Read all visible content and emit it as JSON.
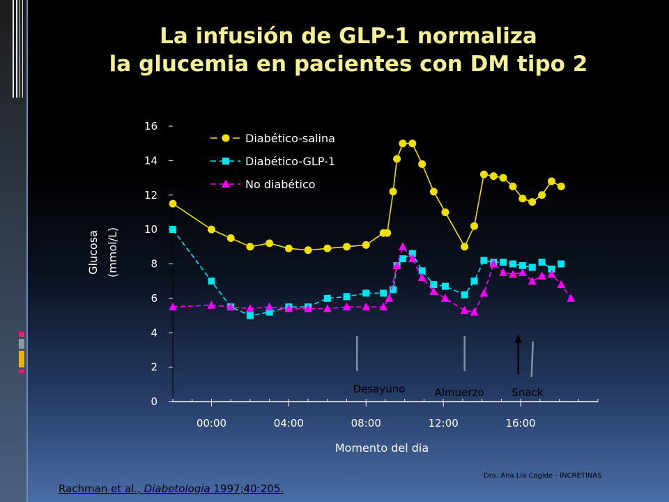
{
  "slide": {
    "title_line1": "La infusión de GLP-1 normaliza",
    "title_line2": "la glucemia en pacientes con DM tipo 2",
    "citation_authors": "Rachman et al., ",
    "citation_journal": "Diabetologia",
    "citation_ref": " 1997;40:205.",
    "footer": "Dra. Ana Lia Cagide - INCRETINAS",
    "accent_colors": [
      "#e0207a",
      "#8a9aa8",
      "#f0b000"
    ]
  },
  "chart_data": {
    "type": "line",
    "title": "",
    "xlabel": "Momento del dia",
    "ylabel_line1": "Glucosa",
    "ylabel_line2": "(mmol/L)",
    "ylim": [
      0,
      16
    ],
    "yticks": [
      "0",
      "2",
      "4",
      "6",
      "8",
      "10",
      "12",
      "14",
      "16"
    ],
    "xlim": [
      -2,
      20
    ],
    "xticks": [
      {
        "value": 0,
        "label": "00:00"
      },
      {
        "value": 4,
        "label": "04:00"
      },
      {
        "value": 8,
        "label": "08:00"
      },
      {
        "value": 12,
        "label": "12:00"
      },
      {
        "value": 16,
        "label": "16:00"
      }
    ],
    "grid": false,
    "legend_position": "top-left",
    "series": [
      {
        "name": "Diabético-salina",
        "color": "#f0e000",
        "marker": "circle",
        "line": "solid",
        "points": [
          [
            -2,
            11.5
          ],
          [
            0,
            10.0
          ],
          [
            1,
            9.5
          ],
          [
            2,
            9.0
          ],
          [
            3,
            9.2
          ],
          [
            4,
            8.9
          ],
          [
            5,
            8.8
          ],
          [
            6,
            8.9
          ],
          [
            7,
            9.0
          ],
          [
            8,
            9.1
          ],
          [
            8.9,
            9.8
          ],
          [
            9.1,
            9.8
          ],
          [
            9.4,
            12.2
          ],
          [
            9.6,
            14.1
          ],
          [
            9.9,
            15.0
          ],
          [
            10.4,
            15.0
          ],
          [
            10.9,
            13.8
          ],
          [
            11.5,
            12.2
          ],
          [
            12.1,
            11.0
          ],
          [
            13.1,
            9.0
          ],
          [
            13.6,
            10.2
          ],
          [
            14.1,
            13.2
          ],
          [
            14.6,
            13.1
          ],
          [
            15.1,
            13.0
          ],
          [
            15.6,
            12.5
          ],
          [
            16.1,
            11.8
          ],
          [
            16.6,
            11.6
          ],
          [
            17.1,
            12.0
          ],
          [
            17.6,
            12.8
          ],
          [
            18.1,
            12.5
          ]
        ]
      },
      {
        "name": "Diabético-GLP-1",
        "color": "#00e5f0",
        "marker": "square",
        "line": "dashed",
        "points": [
          [
            -2,
            10.0
          ],
          [
            0,
            7.0
          ],
          [
            1,
            5.5
          ],
          [
            2,
            5.0
          ],
          [
            3,
            5.2
          ],
          [
            4,
            5.5
          ],
          [
            5,
            5.5
          ],
          [
            6,
            6.0
          ],
          [
            7,
            6.1
          ],
          [
            8,
            6.3
          ],
          [
            8.9,
            6.3
          ],
          [
            9.4,
            6.5
          ],
          [
            9.6,
            7.9
          ],
          [
            9.9,
            8.3
          ],
          [
            10.4,
            8.6
          ],
          [
            10.9,
            7.6
          ],
          [
            11.5,
            6.8
          ],
          [
            12.1,
            6.7
          ],
          [
            13.1,
            6.2
          ],
          [
            13.6,
            7.0
          ],
          [
            14.1,
            8.2
          ],
          [
            14.6,
            8.1
          ],
          [
            15.1,
            8.1
          ],
          [
            15.6,
            8.0
          ],
          [
            16.1,
            7.9
          ],
          [
            16.6,
            7.8
          ],
          [
            17.1,
            8.1
          ],
          [
            17.6,
            7.7
          ],
          [
            18.1,
            8.0
          ]
        ]
      },
      {
        "name": "No diabético",
        "color": "#ff00ff",
        "marker": "triangle",
        "line": "dashed",
        "points": [
          [
            -2,
            5.5
          ],
          [
            0,
            5.6
          ],
          [
            1,
            5.5
          ],
          [
            2,
            5.4
          ],
          [
            3,
            5.5
          ],
          [
            4,
            5.4
          ],
          [
            5,
            5.4
          ],
          [
            6,
            5.4
          ],
          [
            7,
            5.5
          ],
          [
            8,
            5.5
          ],
          [
            8.9,
            5.5
          ],
          [
            9.2,
            6.0
          ],
          [
            9.6,
            7.9
          ],
          [
            9.9,
            9.0
          ],
          [
            10.4,
            8.3
          ],
          [
            10.9,
            7.2
          ],
          [
            11.5,
            6.4
          ],
          [
            12.1,
            6.0
          ],
          [
            13.1,
            5.3
          ],
          [
            13.6,
            5.2
          ],
          [
            14.1,
            6.3
          ],
          [
            14.6,
            8.0
          ],
          [
            15.1,
            7.5
          ],
          [
            15.6,
            7.4
          ],
          [
            16.1,
            7.5
          ],
          [
            16.6,
            7.0
          ],
          [
            17.1,
            7.3
          ],
          [
            17.6,
            7.4
          ],
          [
            18.1,
            6.8
          ],
          [
            18.6,
            6.0
          ]
        ]
      }
    ],
    "meal_markers": [
      {
        "label": "Desayuno",
        "x": 8.9,
        "style": "gray-line",
        "color": "#7f93a8"
      },
      {
        "label": "Almuerzo",
        "x": 13.1,
        "style": "gray-line",
        "color": "#7f93a8"
      },
      {
        "label": "Snack",
        "x": 16.6,
        "style": "black-arrow",
        "color": "#000000"
      }
    ]
  }
}
